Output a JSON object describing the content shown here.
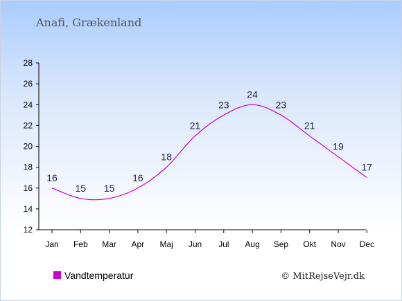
{
  "chart_data": {
    "type": "line",
    "title": "Anafi, Grækenland",
    "categories": [
      "Jan",
      "Feb",
      "Mar",
      "Apr",
      "Maj",
      "Jun",
      "Jul",
      "Aug",
      "Sep",
      "Okt",
      "Nov",
      "Dec"
    ],
    "series": [
      {
        "name": "Vandtemperatur",
        "values": [
          16,
          15,
          15,
          16,
          18,
          21,
          23,
          24,
          23,
          21,
          19,
          17
        ],
        "color": "#cc00cc"
      }
    ],
    "yticks": [
      12,
      14,
      16,
      18,
      20,
      22,
      24,
      26,
      28
    ],
    "ylim": [
      12,
      28
    ],
    "grid": false,
    "legend_position": "bottom-left",
    "credit": "© MitRejseVejr.dk"
  }
}
